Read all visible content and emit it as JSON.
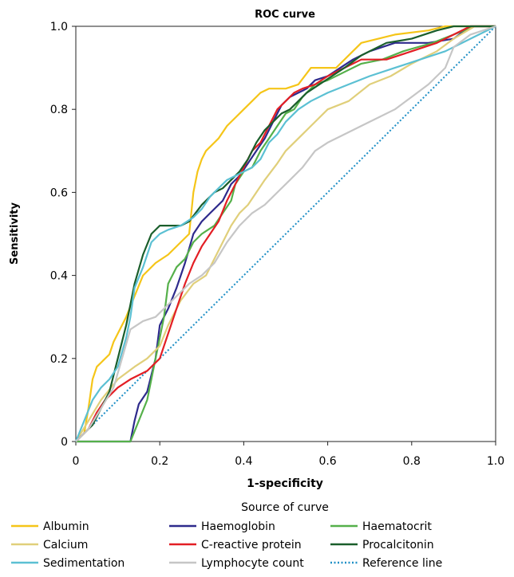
{
  "chart_data": {
    "type": "line",
    "title": "ROC curve",
    "xlabel": "1-specificity",
    "ylabel": "Sensitivity",
    "xlim": [
      0,
      1
    ],
    "ylim": [
      0,
      1
    ],
    "xticks": [
      "0",
      "0.2",
      "0.4",
      "0.6",
      "0.8",
      "1.0"
    ],
    "yticks": [
      "0",
      "0.2",
      "0.4",
      "0.6",
      "0.8",
      "1.0"
    ],
    "grid": false,
    "legend_title": "Source of curve",
    "legend_position": "bottom",
    "series": [
      {
        "name": "Albumin",
        "color": "#f5c518",
        "dash": false,
        "points": [
          [
            0,
            0
          ],
          [
            0.02,
            0.02
          ],
          [
            0.03,
            0.08
          ],
          [
            0.04,
            0.15
          ],
          [
            0.05,
            0.18
          ],
          [
            0.06,
            0.19
          ],
          [
            0.08,
            0.21
          ],
          [
            0.09,
            0.24
          ],
          [
            0.12,
            0.3
          ],
          [
            0.14,
            0.35
          ],
          [
            0.16,
            0.4
          ],
          [
            0.19,
            0.43
          ],
          [
            0.22,
            0.45
          ],
          [
            0.24,
            0.47
          ],
          [
            0.27,
            0.5
          ],
          [
            0.28,
            0.6
          ],
          [
            0.29,
            0.65
          ],
          [
            0.3,
            0.68
          ],
          [
            0.31,
            0.7
          ],
          [
            0.33,
            0.72
          ],
          [
            0.34,
            0.73
          ],
          [
            0.36,
            0.76
          ],
          [
            0.38,
            0.78
          ],
          [
            0.4,
            0.8
          ],
          [
            0.42,
            0.82
          ],
          [
            0.44,
            0.84
          ],
          [
            0.46,
            0.85
          ],
          [
            0.5,
            0.85
          ],
          [
            0.53,
            0.86
          ],
          [
            0.56,
            0.9
          ],
          [
            0.62,
            0.9
          ],
          [
            0.68,
            0.96
          ],
          [
            0.76,
            0.98
          ],
          [
            0.84,
            0.99
          ],
          [
            0.88,
            1.0
          ],
          [
            1.0,
            1.0
          ]
        ]
      },
      {
        "name": "Haemoglobin",
        "color": "#2e2a8c",
        "dash": false,
        "points": [
          [
            0,
            0
          ],
          [
            0.13,
            0
          ],
          [
            0.14,
            0.05
          ],
          [
            0.15,
            0.09
          ],
          [
            0.17,
            0.12
          ],
          [
            0.19,
            0.2
          ],
          [
            0.2,
            0.28
          ],
          [
            0.22,
            0.32
          ],
          [
            0.24,
            0.37
          ],
          [
            0.26,
            0.43
          ],
          [
            0.28,
            0.5
          ],
          [
            0.3,
            0.53
          ],
          [
            0.32,
            0.55
          ],
          [
            0.35,
            0.58
          ],
          [
            0.37,
            0.62
          ],
          [
            0.39,
            0.64
          ],
          [
            0.41,
            0.67
          ],
          [
            0.43,
            0.7
          ],
          [
            0.45,
            0.73
          ],
          [
            0.47,
            0.77
          ],
          [
            0.49,
            0.81
          ],
          [
            0.51,
            0.83
          ],
          [
            0.53,
            0.84
          ],
          [
            0.55,
            0.85
          ],
          [
            0.57,
            0.87
          ],
          [
            0.6,
            0.88
          ],
          [
            0.63,
            0.9
          ],
          [
            0.66,
            0.92
          ],
          [
            0.7,
            0.94
          ],
          [
            0.76,
            0.96
          ],
          [
            0.84,
            0.96
          ],
          [
            0.9,
            0.97
          ],
          [
            0.94,
            1.0
          ],
          [
            1.0,
            1.0
          ]
        ]
      },
      {
        "name": "Haematocrit",
        "color": "#55b04a",
        "dash": false,
        "points": [
          [
            0,
            0
          ],
          [
            0.13,
            0
          ],
          [
            0.15,
            0.05
          ],
          [
            0.17,
            0.1
          ],
          [
            0.19,
            0.2
          ],
          [
            0.21,
            0.3
          ],
          [
            0.22,
            0.38
          ],
          [
            0.24,
            0.42
          ],
          [
            0.26,
            0.44
          ],
          [
            0.28,
            0.48
          ],
          [
            0.3,
            0.5
          ],
          [
            0.33,
            0.52
          ],
          [
            0.35,
            0.55
          ],
          [
            0.37,
            0.58
          ],
          [
            0.38,
            0.62
          ],
          [
            0.4,
            0.65
          ],
          [
            0.42,
            0.66
          ],
          [
            0.44,
            0.7
          ],
          [
            0.46,
            0.73
          ],
          [
            0.48,
            0.76
          ],
          [
            0.5,
            0.79
          ],
          [
            0.52,
            0.8
          ],
          [
            0.54,
            0.83
          ],
          [
            0.57,
            0.86
          ],
          [
            0.6,
            0.87
          ],
          [
            0.64,
            0.89
          ],
          [
            0.68,
            0.91
          ],
          [
            0.73,
            0.92
          ],
          [
            0.78,
            0.94
          ],
          [
            0.85,
            0.96
          ],
          [
            0.9,
            0.98
          ],
          [
            0.95,
            1.0
          ],
          [
            1.0,
            1.0
          ]
        ]
      },
      {
        "name": "Calcium",
        "color": "#e0cf7a",
        "dash": false,
        "points": [
          [
            0,
            0
          ],
          [
            0.03,
            0.05
          ],
          [
            0.06,
            0.1
          ],
          [
            0.1,
            0.15
          ],
          [
            0.14,
            0.18
          ],
          [
            0.17,
            0.2
          ],
          [
            0.2,
            0.23
          ],
          [
            0.22,
            0.28
          ],
          [
            0.25,
            0.34
          ],
          [
            0.28,
            0.38
          ],
          [
            0.31,
            0.4
          ],
          [
            0.33,
            0.44
          ],
          [
            0.35,
            0.48
          ],
          [
            0.37,
            0.52
          ],
          [
            0.39,
            0.55
          ],
          [
            0.41,
            0.57
          ],
          [
            0.43,
            0.6
          ],
          [
            0.45,
            0.63
          ],
          [
            0.48,
            0.67
          ],
          [
            0.5,
            0.7
          ],
          [
            0.53,
            0.73
          ],
          [
            0.56,
            0.76
          ],
          [
            0.6,
            0.8
          ],
          [
            0.65,
            0.82
          ],
          [
            0.7,
            0.86
          ],
          [
            0.75,
            0.88
          ],
          [
            0.8,
            0.91
          ],
          [
            0.86,
            0.94
          ],
          [
            0.9,
            0.97
          ],
          [
            0.95,
            1.0
          ],
          [
            1.0,
            1.0
          ]
        ]
      },
      {
        "name": "C-reactive protein",
        "color": "#e31e24",
        "dash": false,
        "points": [
          [
            0,
            0
          ],
          [
            0.03,
            0.03
          ],
          [
            0.05,
            0.07
          ],
          [
            0.07,
            0.1
          ],
          [
            0.1,
            0.13
          ],
          [
            0.13,
            0.15
          ],
          [
            0.17,
            0.17
          ],
          [
            0.2,
            0.2
          ],
          [
            0.22,
            0.26
          ],
          [
            0.24,
            0.32
          ],
          [
            0.26,
            0.38
          ],
          [
            0.28,
            0.43
          ],
          [
            0.3,
            0.47
          ],
          [
            0.32,
            0.5
          ],
          [
            0.34,
            0.53
          ],
          [
            0.36,
            0.58
          ],
          [
            0.38,
            0.62
          ],
          [
            0.4,
            0.66
          ],
          [
            0.42,
            0.7
          ],
          [
            0.44,
            0.72
          ],
          [
            0.46,
            0.76
          ],
          [
            0.48,
            0.8
          ],
          [
            0.5,
            0.82
          ],
          [
            0.52,
            0.84
          ],
          [
            0.54,
            0.85
          ],
          [
            0.57,
            0.86
          ],
          [
            0.6,
            0.88
          ],
          [
            0.64,
            0.9
          ],
          [
            0.68,
            0.92
          ],
          [
            0.74,
            0.92
          ],
          [
            0.8,
            0.94
          ],
          [
            0.86,
            0.96
          ],
          [
            0.9,
            0.98
          ],
          [
            0.94,
            1.0
          ],
          [
            1.0,
            1.0
          ]
        ]
      },
      {
        "name": "Procalcitonin",
        "color": "#1a5e2b",
        "dash": false,
        "points": [
          [
            0,
            0
          ],
          [
            0.02,
            0.02
          ],
          [
            0.04,
            0.04
          ],
          [
            0.06,
            0.08
          ],
          [
            0.08,
            0.12
          ],
          [
            0.1,
            0.2
          ],
          [
            0.12,
            0.28
          ],
          [
            0.13,
            0.33
          ],
          [
            0.14,
            0.38
          ],
          [
            0.16,
            0.45
          ],
          [
            0.18,
            0.5
          ],
          [
            0.2,
            0.52
          ],
          [
            0.23,
            0.52
          ],
          [
            0.25,
            0.52
          ],
          [
            0.27,
            0.53
          ],
          [
            0.3,
            0.57
          ],
          [
            0.33,
            0.6
          ],
          [
            0.35,
            0.61
          ],
          [
            0.37,
            0.63
          ],
          [
            0.39,
            0.65
          ],
          [
            0.41,
            0.68
          ],
          [
            0.43,
            0.72
          ],
          [
            0.45,
            0.75
          ],
          [
            0.47,
            0.77
          ],
          [
            0.49,
            0.79
          ],
          [
            0.51,
            0.8
          ],
          [
            0.53,
            0.82
          ],
          [
            0.55,
            0.84
          ],
          [
            0.58,
            0.86
          ],
          [
            0.61,
            0.88
          ],
          [
            0.64,
            0.9
          ],
          [
            0.68,
            0.93
          ],
          [
            0.74,
            0.96
          ],
          [
            0.8,
            0.97
          ],
          [
            0.86,
            0.99
          ],
          [
            0.9,
            1.0
          ],
          [
            1.0,
            1.0
          ]
        ]
      },
      {
        "name": "Sedimentation",
        "color": "#5bc0d3",
        "dash": false,
        "points": [
          [
            0,
            0
          ],
          [
            0.02,
            0.05
          ],
          [
            0.04,
            0.1
          ],
          [
            0.06,
            0.13
          ],
          [
            0.08,
            0.15
          ],
          [
            0.1,
            0.18
          ],
          [
            0.12,
            0.25
          ],
          [
            0.13,
            0.3
          ],
          [
            0.14,
            0.37
          ],
          [
            0.16,
            0.42
          ],
          [
            0.18,
            0.48
          ],
          [
            0.2,
            0.5
          ],
          [
            0.22,
            0.51
          ],
          [
            0.25,
            0.52
          ],
          [
            0.28,
            0.54
          ],
          [
            0.3,
            0.56
          ],
          [
            0.32,
            0.59
          ],
          [
            0.34,
            0.61
          ],
          [
            0.36,
            0.63
          ],
          [
            0.38,
            0.64
          ],
          [
            0.4,
            0.65
          ],
          [
            0.42,
            0.66
          ],
          [
            0.44,
            0.68
          ],
          [
            0.46,
            0.72
          ],
          [
            0.48,
            0.74
          ],
          [
            0.5,
            0.77
          ],
          [
            0.53,
            0.8
          ],
          [
            0.56,
            0.82
          ],
          [
            0.6,
            0.84
          ],
          [
            0.65,
            0.86
          ],
          [
            0.7,
            0.88
          ],
          [
            0.76,
            0.9
          ],
          [
            0.82,
            0.92
          ],
          [
            0.88,
            0.94
          ],
          [
            0.94,
            0.97
          ],
          [
            1.0,
            1.0
          ]
        ]
      },
      {
        "name": "Lymphocyte count",
        "color": "#c6c6c6",
        "dash": false,
        "points": [
          [
            0,
            0
          ],
          [
            0.03,
            0.03
          ],
          [
            0.06,
            0.08
          ],
          [
            0.09,
            0.13
          ],
          [
            0.11,
            0.2
          ],
          [
            0.13,
            0.27
          ],
          [
            0.16,
            0.29
          ],
          [
            0.19,
            0.3
          ],
          [
            0.22,
            0.33
          ],
          [
            0.24,
            0.35
          ],
          [
            0.27,
            0.38
          ],
          [
            0.3,
            0.4
          ],
          [
            0.33,
            0.43
          ],
          [
            0.36,
            0.48
          ],
          [
            0.39,
            0.52
          ],
          [
            0.42,
            0.55
          ],
          [
            0.45,
            0.57
          ],
          [
            0.48,
            0.6
          ],
          [
            0.51,
            0.63
          ],
          [
            0.54,
            0.66
          ],
          [
            0.57,
            0.7
          ],
          [
            0.6,
            0.72
          ],
          [
            0.64,
            0.74
          ],
          [
            0.68,
            0.76
          ],
          [
            0.72,
            0.78
          ],
          [
            0.76,
            0.8
          ],
          [
            0.8,
            0.83
          ],
          [
            0.84,
            0.86
          ],
          [
            0.88,
            0.9
          ],
          [
            0.9,
            0.95
          ],
          [
            0.94,
            0.98
          ],
          [
            1.0,
            1.0
          ]
        ]
      },
      {
        "name": "Reference line",
        "color": "#1e8fc6",
        "dash": true,
        "points": [
          [
            0,
            0
          ],
          [
            1.0,
            1.0
          ]
        ]
      }
    ]
  }
}
